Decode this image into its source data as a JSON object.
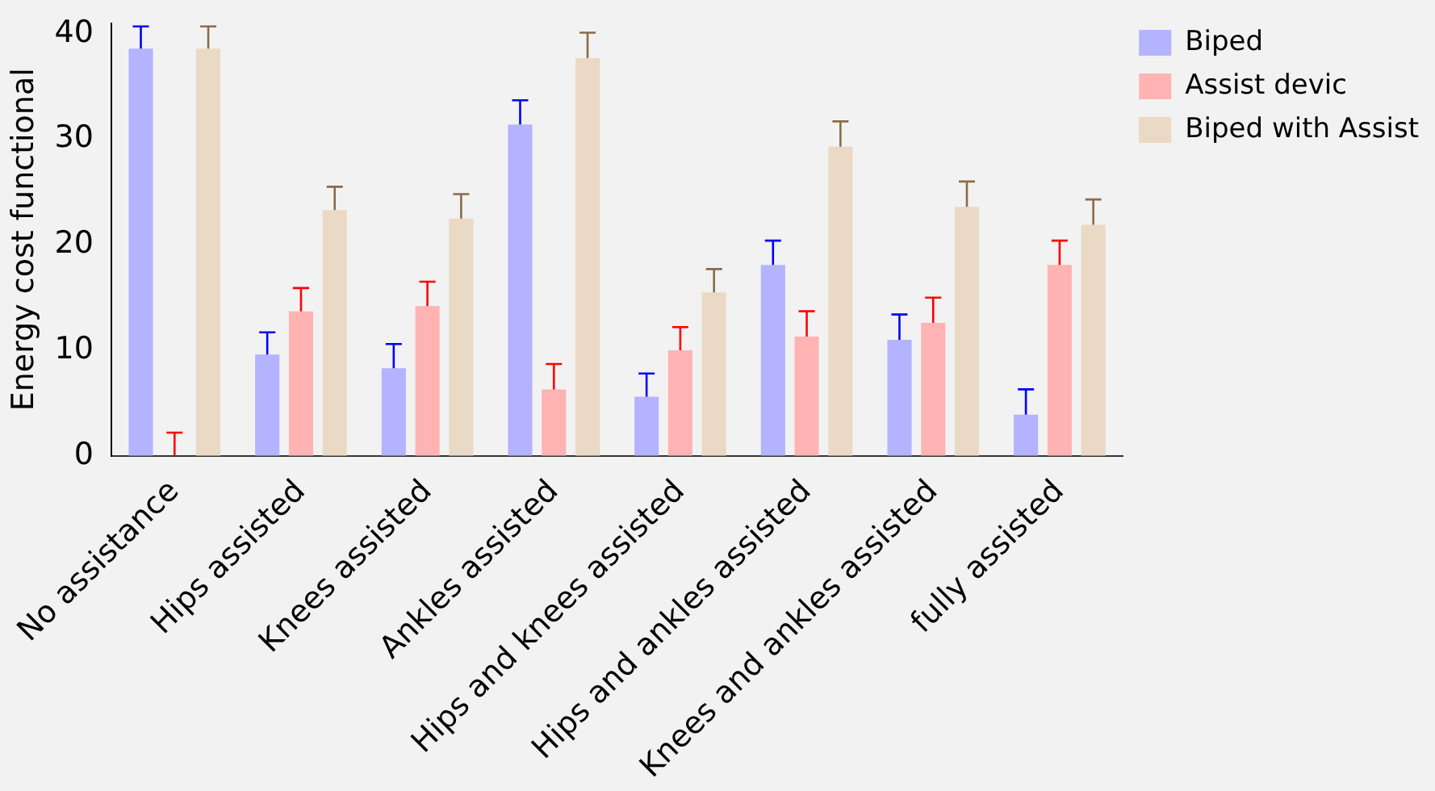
{
  "chart_data": {
    "type": "bar",
    "ylabel": "Energy cost functional",
    "categories": [
      "No assistance",
      "Hips assisted",
      "Knees assisted",
      "Ankles assisted",
      "Hips and knees assisted",
      "Hips and ankles assisted",
      "Knees and ankles assisted",
      "fully assisted"
    ],
    "series": [
      {
        "name": "Biped",
        "color": "#b3b3ff",
        "values": [
          38.6,
          9.6,
          8.3,
          31.4,
          5.6,
          18.1,
          11.0,
          3.9
        ],
        "errors": [
          [
            38.6,
            40.7
          ],
          [
            9.6,
            11.7
          ],
          [
            8.3,
            10.6
          ],
          [
            31.4,
            33.7
          ],
          [
            5.6,
            7.8
          ],
          [
            18.1,
            20.4
          ],
          [
            11.0,
            13.4
          ],
          [
            3.9,
            6.3
          ]
        ]
      },
      {
        "name": "Assist devic",
        "color": "#ffb3b3",
        "values": [
          0,
          13.7,
          14.2,
          6.3,
          10.0,
          11.3,
          12.6,
          18.1
        ],
        "errors": [
          [
            0,
            2.2
          ],
          [
            13.7,
            15.9
          ],
          [
            14.2,
            16.5
          ],
          [
            6.3,
            8.7
          ],
          [
            10.0,
            12.2
          ],
          [
            11.3,
            13.7
          ],
          [
            12.6,
            15.0
          ],
          [
            18.1,
            20.4
          ]
        ]
      },
      {
        "name": "Biped with Assist",
        "color": "#ead9c4",
        "values": [
          38.6,
          23.3,
          22.5,
          37.7,
          15.5,
          29.3,
          23.6,
          21.9
        ],
        "errors": [
          [
            38.6,
            40.7
          ],
          [
            23.3,
            25.5
          ],
          [
            22.5,
            24.8
          ],
          [
            37.7,
            40.1
          ],
          [
            15.5,
            17.7
          ],
          [
            29.3,
            31.7
          ],
          [
            23.6,
            26.0
          ],
          [
            21.9,
            24.3
          ]
        ]
      }
    ],
    "ylim": [
      0,
      41
    ],
    "yticks": [
      0,
      10,
      20,
      30,
      40
    ],
    "grid": false,
    "legend": "right"
  }
}
